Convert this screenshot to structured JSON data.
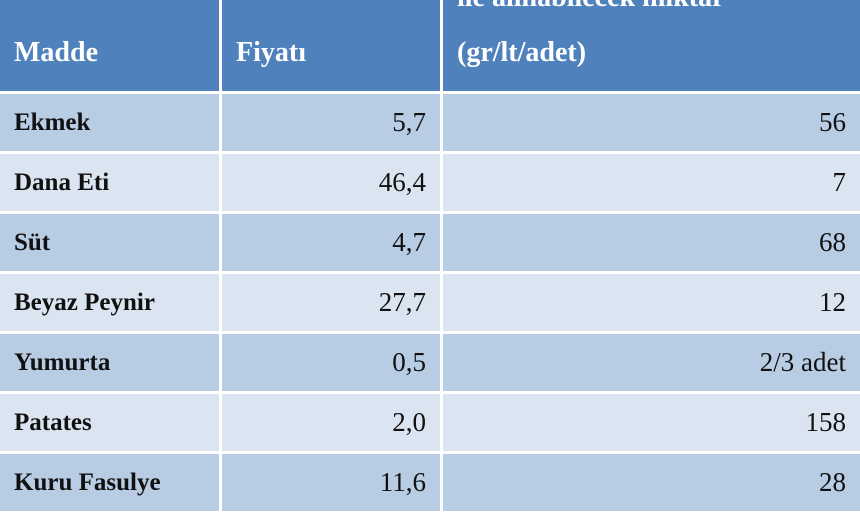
{
  "table": {
    "headers": {
      "item": "Madde",
      "price": "Fiyatı",
      "quantity_line1": "ile alınabilecek miktar",
      "quantity_line2": "(gr/lt/adet)"
    },
    "rows": [
      {
        "item": "Ekmek",
        "price": "5,7",
        "quantity": "56"
      },
      {
        "item": "Dana Eti",
        "price": "46,4",
        "quantity": "7"
      },
      {
        "item": "Süt",
        "price": "4,7",
        "quantity": "68"
      },
      {
        "item": "Beyaz Peynir",
        "price": "27,7",
        "quantity": "12"
      },
      {
        "item": "Yumurta",
        "price": "0,5",
        "quantity": "2/3 adet"
      },
      {
        "item": "Patates",
        "price": "2,0",
        "quantity": "158"
      },
      {
        "item": "Kuru Fasulye",
        "price": "11,6",
        "quantity": "28"
      }
    ]
  },
  "colors": {
    "header": "#4f81bd",
    "band_dark": "#b8cce4",
    "band_light": "#dbe5f1"
  }
}
